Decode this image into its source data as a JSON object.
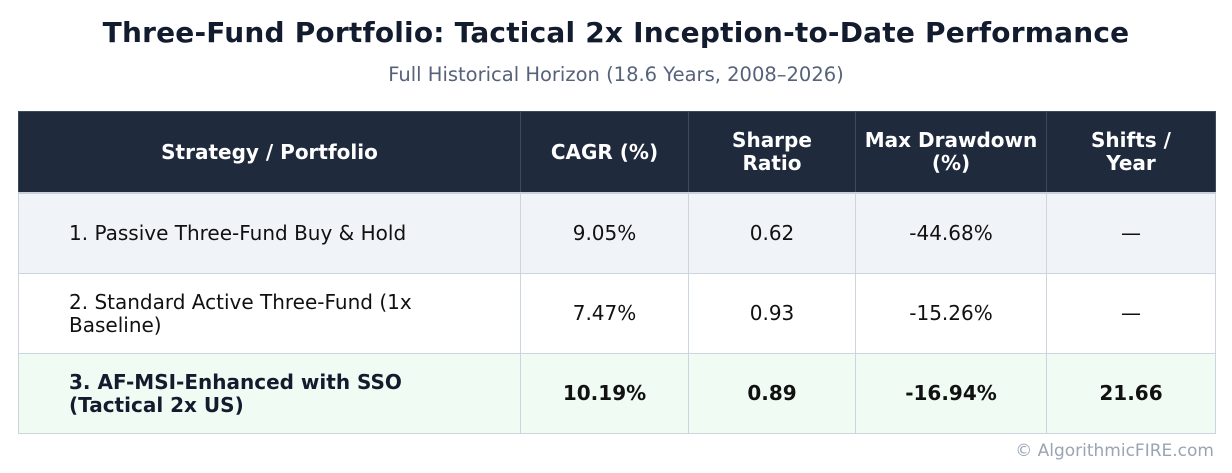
{
  "title": "Three-Fund Portfolio: Tactical 2x Inception-to-Date Performance",
  "subtitle": "Full Historical Horizon (18.6 Years, 2008–2026)",
  "table": {
    "headers": [
      "Strategy / Portfolio",
      "CAGR (%)",
      "Sharpe Ratio",
      "Max Drawdown (%)",
      "Shifts / Year"
    ],
    "header_lines": {
      "sharpe": [
        "Sharpe",
        "Ratio"
      ],
      "drawdown": [
        "Max Drawdown",
        "(%)"
      ],
      "shifts": [
        "Shifts /",
        "Year"
      ]
    },
    "rows": [
      {
        "strategy_lines": [
          "1. Passive Three-Fund Buy & Hold"
        ],
        "cagr": "9.05%",
        "sharpe": "0.62",
        "max_drawdown": "-44.68%",
        "shifts_per_year": "—"
      },
      {
        "strategy_lines": [
          "2. Standard Active Three-Fund (1x",
          "Baseline)"
        ],
        "cagr": "7.47%",
        "sharpe": "0.93",
        "max_drawdown": "-15.26%",
        "shifts_per_year": "—"
      },
      {
        "strategy_lines": [
          "3. AF-MSI-Enhanced with SSO",
          "(Tactical 2x US)"
        ],
        "cagr": "10.19%",
        "sharpe": "0.89",
        "max_drawdown": "-16.94%",
        "shifts_per_year": "21.66"
      }
    ]
  },
  "footer": "© AlgorithmicFIRE.com",
  "colors": {
    "header_bg": "#1f2a3d",
    "highlight_cagr": "#1e3578",
    "highlight_drawdown": "#1c7a3e",
    "row_alt_bg": "#f0f4f9",
    "row_highlight_bg": "#f0fbf3"
  }
}
